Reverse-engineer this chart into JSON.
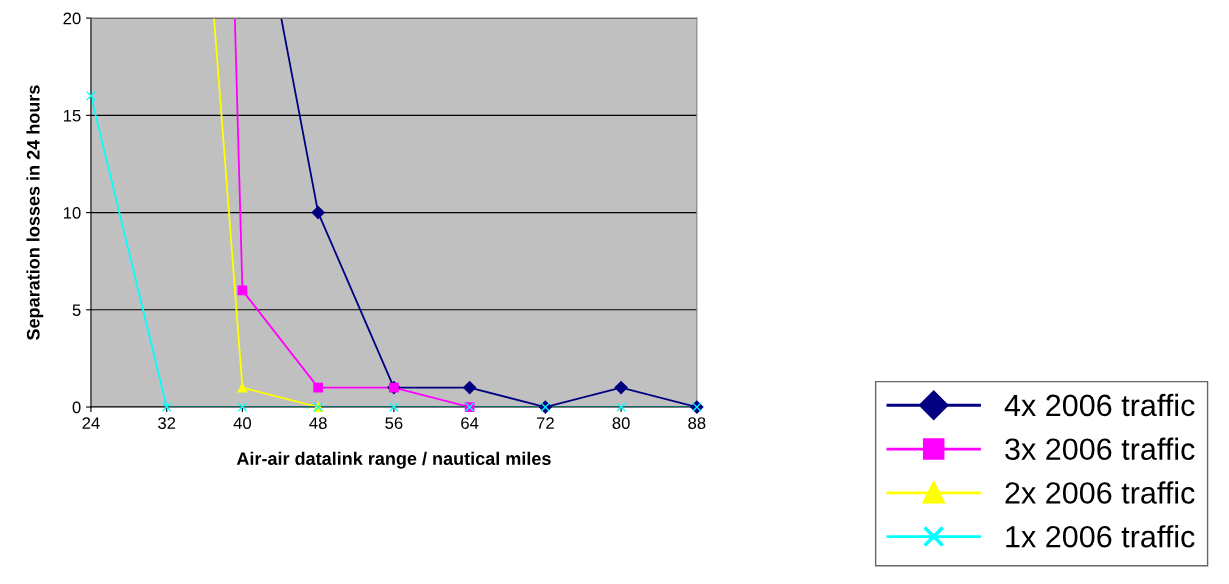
{
  "chart_data": {
    "type": "line",
    "xlabel": "Air-air datalink range / nautical miles",
    "ylabel": "Separation losses in 24 hours",
    "xlim": [
      24,
      88
    ],
    "xticks": [
      24,
      32,
      40,
      48,
      56,
      64,
      72,
      80,
      88
    ],
    "ylim": [
      0,
      20
    ],
    "yticks": [
      0,
      5,
      10,
      15,
      20
    ],
    "grid": "y",
    "legend": "right",
    "line_style": "solid",
    "series": [
      {
        "name": "4x 2006 traffic",
        "color": "#000080",
        "marker": "diamond",
        "x": [
          44.1,
          48,
          56,
          64,
          72,
          80,
          88
        ],
        "values": [
          20,
          10,
          1,
          1,
          0,
          1,
          0
        ]
      },
      {
        "name": "3x 2006 traffic",
        "color": "#ff00ff",
        "marker": "square",
        "x": [
          39.2,
          40,
          48,
          56,
          64
        ],
        "values": [
          20,
          6,
          1,
          1,
          0
        ]
      },
      {
        "name": "2x 2006 traffic",
        "color": "#ffff00",
        "marker": "triangle",
        "x": [
          37.0,
          40,
          48
        ],
        "values": [
          20,
          1,
          0
        ]
      },
      {
        "name": "1x 2006 traffic",
        "color": "#00ffff",
        "marker": "cross",
        "x": [
          24,
          32,
          40,
          48,
          56,
          64,
          72,
          80,
          88
        ],
        "values": [
          16,
          0,
          0,
          0,
          0,
          0,
          0,
          0,
          0
        ]
      }
    ]
  }
}
